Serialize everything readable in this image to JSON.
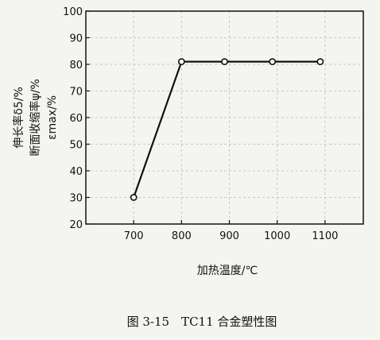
{
  "chart_data": {
    "type": "line",
    "xlabel": "加热温度/℃",
    "ylabel_lines": [
      "伸长率δ5/%",
      "断面收缩率ψ/%",
      "εmax/%"
    ],
    "x_ticks": [
      700,
      800,
      900,
      1000,
      1100
    ],
    "y_ticks": [
      20,
      30,
      40,
      50,
      60,
      70,
      80,
      90,
      100
    ],
    "xlim": [
      600,
      1180
    ],
    "ylim": [
      20,
      100
    ],
    "grid": true,
    "series": [
      {
        "x": [
          700,
          800,
          890,
          990,
          1090
        ],
        "values": [
          30,
          81,
          81,
          81,
          81
        ]
      }
    ]
  },
  "caption": "图 3-15　TC11 合金塑性图",
  "colors": {
    "line": "#111111",
    "grid": "#c8c8c4",
    "background": "#f4f4f1"
  }
}
